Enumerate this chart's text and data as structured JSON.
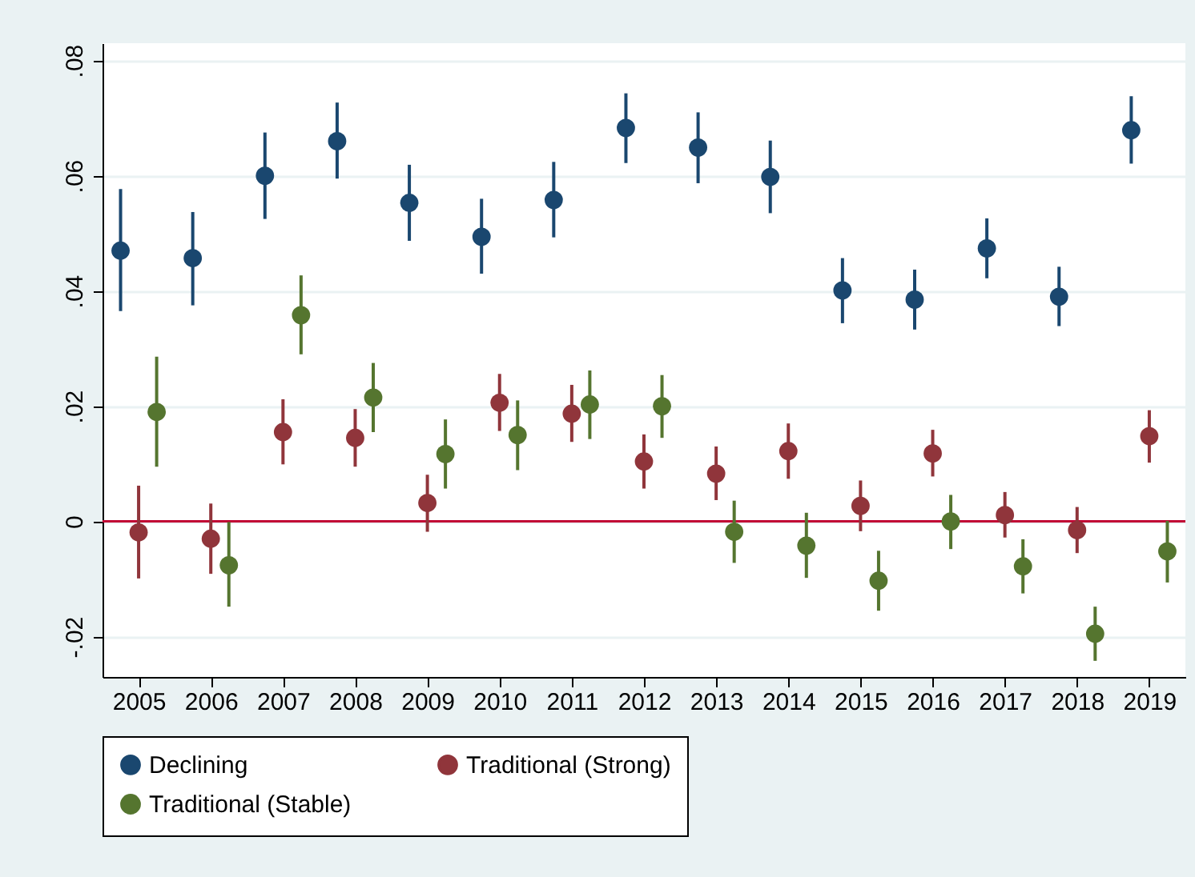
{
  "chart_data": {
    "type": "scatter",
    "marker": "circle",
    "grid": "y",
    "legend": "bottom",
    "xlim": [
      2004.5,
      2019.5
    ],
    "xticks": [
      2005,
      2006,
      2007,
      2008,
      2009,
      2010,
      2011,
      2012,
      2013,
      2014,
      2015,
      2016,
      2017,
      2018,
      2019
    ],
    "ylim": [
      -0.027,
      0.083
    ],
    "yticks": [
      {
        "value": -0.02,
        "label": "-.02"
      },
      0,
      {
        "value": 0.02,
        "label": ".02"
      },
      {
        "value": 0.04,
        "label": ".04"
      },
      {
        "value": 0.06,
        "label": ".06"
      },
      {
        "value": 0.08,
        "label": ".08"
      }
    ],
    "ref_lines": [
      {
        "axis": "y",
        "value": 0,
        "color": "#c10534"
      }
    ],
    "series": [
      {
        "name": "Declining",
        "color": "#1a476f",
        "x": [
          2004.75,
          2005.75,
          2006.75,
          2007.75,
          2008.75,
          2009.75,
          2010.75,
          2011.75,
          2012.75,
          2013.75,
          2014.75,
          2015.75,
          2016.75,
          2017.75,
          2018.75
        ],
        "values": [
          0.047,
          0.0457,
          0.06,
          0.066,
          0.0553,
          0.0494,
          0.0558,
          0.0683,
          0.0649,
          0.0598,
          0.0401,
          0.0385,
          0.0474,
          0.039,
          0.0679
        ],
        "errors": [
          [
            0.0365,
            0.0577
          ],
          [
            0.0375,
            0.0537
          ],
          [
            0.0525,
            0.0675
          ],
          [
            0.0595,
            0.0727
          ],
          [
            0.0487,
            0.0619
          ],
          [
            0.043,
            0.056
          ],
          [
            0.0493,
            0.0624
          ],
          [
            0.0622,
            0.0743
          ],
          [
            0.0587,
            0.071
          ],
          [
            0.0535,
            0.0661
          ],
          [
            0.0344,
            0.0457
          ],
          [
            0.0333,
            0.0437
          ],
          [
            0.0422,
            0.0526
          ],
          [
            0.0339,
            0.0442
          ],
          [
            0.0621,
            0.0738
          ]
        ]
      },
      {
        "name": "Traditional (Strong)",
        "color": "#90353b",
        "x": [
          2005,
          2006,
          2007,
          2008,
          2009,
          2010,
          2011,
          2012,
          2013,
          2014,
          2015,
          2016,
          2017,
          2018,
          2019
        ],
        "values": [
          -0.0019,
          -0.003,
          0.0155,
          0.0145,
          0.0032,
          0.0206,
          0.0187,
          0.0104,
          0.0083,
          0.0122,
          0.0027,
          0.0118,
          0.0011,
          -0.0015,
          0.0148
        ],
        "errors": [
          [
            -0.0099,
            0.0062
          ],
          [
            -0.0091,
            0.0031
          ],
          [
            0.0099,
            0.0212
          ],
          [
            0.0095,
            0.0195
          ],
          [
            -0.0018,
            0.0081
          ],
          [
            0.0157,
            0.0256
          ],
          [
            0.0138,
            0.0237
          ],
          [
            0.0057,
            0.0151
          ],
          [
            0.0037,
            0.013
          ],
          [
            0.0074,
            0.017
          ],
          [
            -0.0017,
            0.0071
          ],
          [
            0.0078,
            0.0159
          ],
          [
            -0.0028,
            0.0051
          ],
          [
            -0.0055,
            0.0025
          ],
          [
            0.0102,
            0.0193
          ]
        ]
      },
      {
        "name": "Traditional (Stable)",
        "color": "#55752f",
        "x": [
          2005.25,
          2006.25,
          2007.25,
          2008.25,
          2009.25,
          2010.25,
          2011.25,
          2012.25,
          2013.25,
          2014.25,
          2015.25,
          2016.25,
          2017.25,
          2018.25,
          2019.25
        ],
        "values": [
          0.019,
          -0.0076,
          0.0358,
          0.0215,
          0.0117,
          0.015,
          0.0203,
          0.02,
          -0.0018,
          -0.0042,
          -0.0103,
          0,
          -0.0078,
          -0.0195,
          -0.0052
        ],
        "errors": [
          [
            0.0095,
            0.0286
          ],
          [
            -0.0148,
            -0.0001
          ],
          [
            0.029,
            0.0427
          ],
          [
            0.0155,
            0.0275
          ],
          [
            0.0057,
            0.0177
          ],
          [
            0.0089,
            0.021
          ],
          [
            0.0143,
            0.0262
          ],
          [
            0.0145,
            0.0254
          ],
          [
            -0.0072,
            0.0036
          ],
          [
            -0.0098,
            0.0015
          ],
          [
            -0.0155,
            -0.0051
          ],
          [
            -0.0048,
            0.0046
          ],
          [
            -0.0125,
            -0.0031
          ],
          [
            -0.0242,
            -0.0148
          ],
          [
            -0.0106,
            0.0001
          ]
        ]
      }
    ]
  }
}
